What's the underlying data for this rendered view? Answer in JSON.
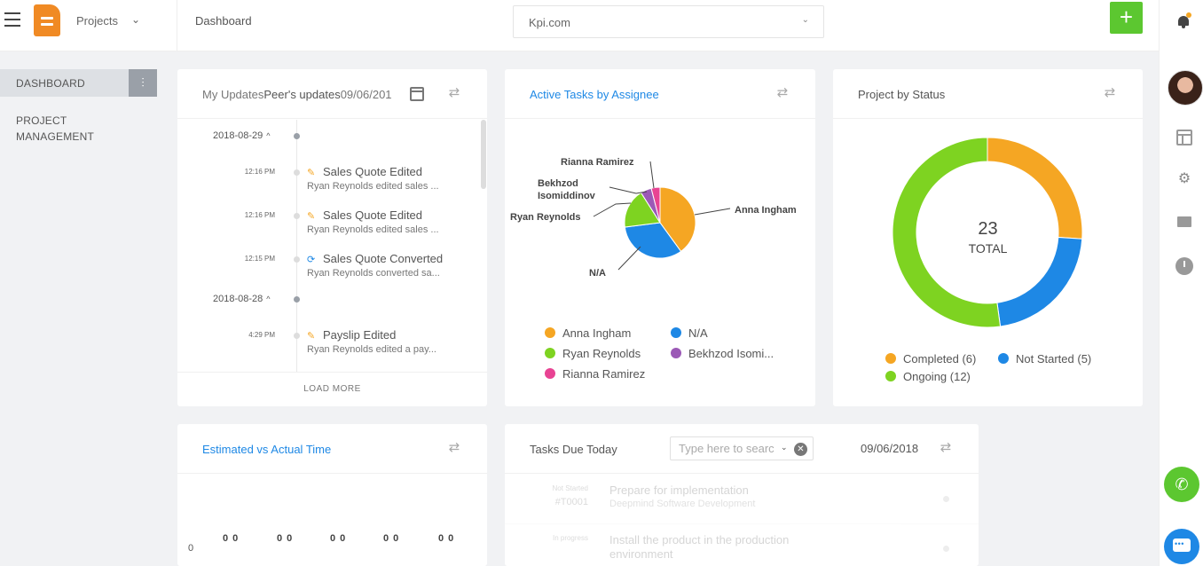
{
  "header": {
    "projects_label": "Projects",
    "breadcrumb": "Dashboard",
    "company": "Kpi.com",
    "add_label": "+"
  },
  "sidebar": {
    "items": [
      {
        "label": "DASHBOARD",
        "active": true
      },
      {
        "label": "PROJECT MANAGEMENT",
        "active": false
      }
    ]
  },
  "my_updates": {
    "title": "My Updates",
    "peer_tab": "Peer's updates",
    "date": "09/06/201",
    "load_more": "LOAD MORE",
    "groups": [
      {
        "date": "2018-08-29",
        "events": [
          {
            "time": "12:16 PM",
            "title": "Sales Quote Edited",
            "desc": "Ryan Reynolds edited sales ...",
            "icon": "edit-icon"
          },
          {
            "time": "12:16 PM",
            "title": "Sales Quote Edited",
            "desc": "Ryan Reynolds edited sales ...",
            "icon": "edit-icon"
          },
          {
            "time": "12:15 PM",
            "title": "Sales Quote Converted",
            "desc": "Ryan Reynolds converted sa...",
            "icon": "convert-icon"
          }
        ]
      },
      {
        "date": "2018-08-28",
        "events": [
          {
            "time": "4:29 PM",
            "title": "Payslip Edited",
            "desc": "Ryan Reynolds edited a pay...",
            "icon": "edit-icon"
          }
        ]
      }
    ]
  },
  "active_tasks": {
    "title": "Active Tasks by Assignee",
    "legend": [
      {
        "name": "Anna Ingham",
        "color": "#f5a623"
      },
      {
        "name": "N/A",
        "color": "#1e88e5"
      },
      {
        "name": "Ryan Reynolds",
        "color": "#7ed321"
      },
      {
        "name": "Bekhzod Isomi...",
        "color": "#9b59b6"
      },
      {
        "name": "Rianna Ramirez",
        "color": "#e84393"
      }
    ],
    "pie_labels": {
      "anna": "Anna Ingham",
      "na": "N/A",
      "ryan": "Ryan Reynolds",
      "bekhzod": "Bekhzod Isomiddinov",
      "rianna": "Rianna Ramirez"
    }
  },
  "project_status": {
    "title": "Project by Status",
    "total_value": "23",
    "total_label": "TOTAL",
    "legend": [
      {
        "label": "Completed (6)",
        "color": "#f5a623"
      },
      {
        "label": "Not Started (5)",
        "color": "#1e88e5"
      },
      {
        "label": "Ongoing (12)",
        "color": "#7ed321"
      }
    ]
  },
  "estimated": {
    "title": "Estimated vs Actual Time",
    "axis_zero": "0",
    "pairs": [
      "0 0",
      "0 0",
      "0 0",
      "0 0",
      "0 0"
    ]
  },
  "tasks_due": {
    "title": "Tasks Due Today",
    "search_placeholder": "Type here to search",
    "date": "09/06/2018",
    "rows": [
      {
        "status": "Not Started",
        "num": "#T0001",
        "name": "Prepare for implementation",
        "sub": "Deepmind Software Development"
      },
      {
        "status": "In progress",
        "num": "",
        "name": "Install the product in the production environment",
        "sub": ""
      }
    ]
  },
  "chart_data": [
    {
      "type": "pie",
      "title": "Active Tasks by Assignee",
      "categories": [
        "Anna Ingham",
        "N/A",
        "Ryan Reynolds",
        "Bekhzod Isomiddinov",
        "Rianna Ramirez"
      ],
      "values": [
        40,
        33,
        18,
        5,
        4
      ],
      "colors": [
        "#f5a623",
        "#1e88e5",
        "#7ed321",
        "#9b59b6",
        "#e84393"
      ],
      "legend": "bottom"
    },
    {
      "type": "pie",
      "title": "Project by Status",
      "categories": [
        "Completed",
        "Not Started",
        "Ongoing"
      ],
      "values": [
        6,
        5,
        12
      ],
      "colors": [
        "#f5a623",
        "#1e88e5",
        "#7ed321"
      ],
      "legend": "bottom"
    }
  ]
}
